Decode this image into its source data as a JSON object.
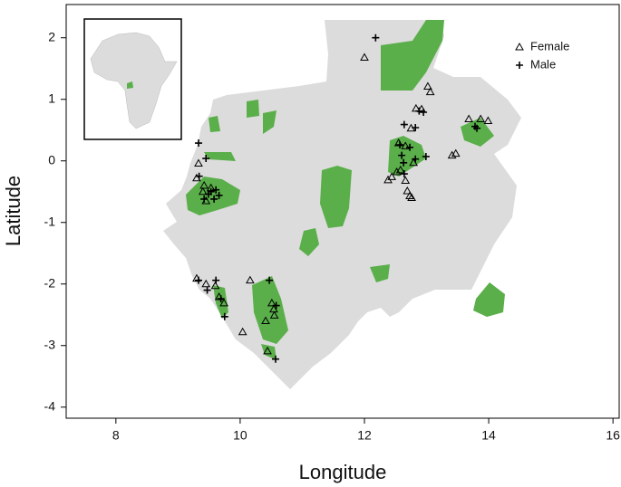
{
  "chart_data": {
    "type": "scatter",
    "xlabel": "Longitude",
    "ylabel": "Latitude",
    "xlim": [
      7.2,
      16.1
    ],
    "ylim": [
      -4.18,
      2.54
    ],
    "xticks": [
      8,
      10,
      12,
      14,
      16
    ],
    "yticks": [
      -4,
      -3,
      -2,
      -1,
      0,
      1,
      2
    ],
    "legend": "top-right",
    "series": [
      {
        "name": "Female",
        "color": "#000000",
        "marker": "triangle",
        "x": [
          12.0,
          13.02,
          13.06,
          12.92,
          12.83,
          12.75,
          12.55,
          12.44,
          12.38,
          12.66,
          12.69,
          12.73,
          12.76,
          13.68,
          13.47,
          13.41,
          13.87,
          13.99,
          9.33,
          9.3,
          9.42,
          9.53,
          9.4,
          9.45,
          9.3,
          9.45,
          9.6,
          9.66,
          9.74,
          10.16,
          10.04,
          10.41,
          10.44,
          10.54,
          10.55,
          10.51,
          12.58,
          12.52,
          12.79,
          12.66
        ],
        "values": [
          1.68,
          1.21,
          1.12,
          0.84,
          0.85,
          0.53,
          0.29,
          -0.26,
          -0.31,
          -0.32,
          -0.49,
          -0.57,
          -0.6,
          0.68,
          0.12,
          0.09,
          0.68,
          0.65,
          -0.04,
          -0.28,
          -0.4,
          -0.44,
          -0.5,
          -0.65,
          -1.91,
          -2.0,
          -2.03,
          -2.21,
          -2.31,
          -1.94,
          -2.78,
          -2.6,
          -3.09,
          -2.41,
          -2.51,
          -2.31,
          -0.15,
          -0.18,
          -0.03,
          0.24
        ]
      },
      {
        "name": "Male",
        "color": "#000000",
        "marker": "plus",
        "x": [
          12.18,
          9.33,
          9.45,
          9.34,
          9.49,
          9.53,
          9.61,
          9.58,
          9.66,
          9.42,
          12.64,
          12.82,
          12.88,
          12.95,
          12.57,
          12.73,
          12.6,
          12.99,
          12.82,
          12.63,
          12.64,
          13.78,
          13.81,
          9.33,
          9.61,
          9.69,
          9.75,
          10.47,
          10.58,
          10.57,
          9.47
        ],
        "values": [
          2.0,
          0.29,
          0.04,
          -0.25,
          -0.54,
          -0.5,
          -0.47,
          -0.62,
          -0.56,
          -0.62,
          0.59,
          0.54,
          0.81,
          0.79,
          0.26,
          0.22,
          0.09,
          0.07,
          0.03,
          -0.03,
          -0.21,
          0.56,
          0.53,
          -1.94,
          -1.94,
          -2.24,
          -2.53,
          -1.94,
          -2.35,
          -3.22,
          -2.1
        ]
      }
    ]
  }
}
